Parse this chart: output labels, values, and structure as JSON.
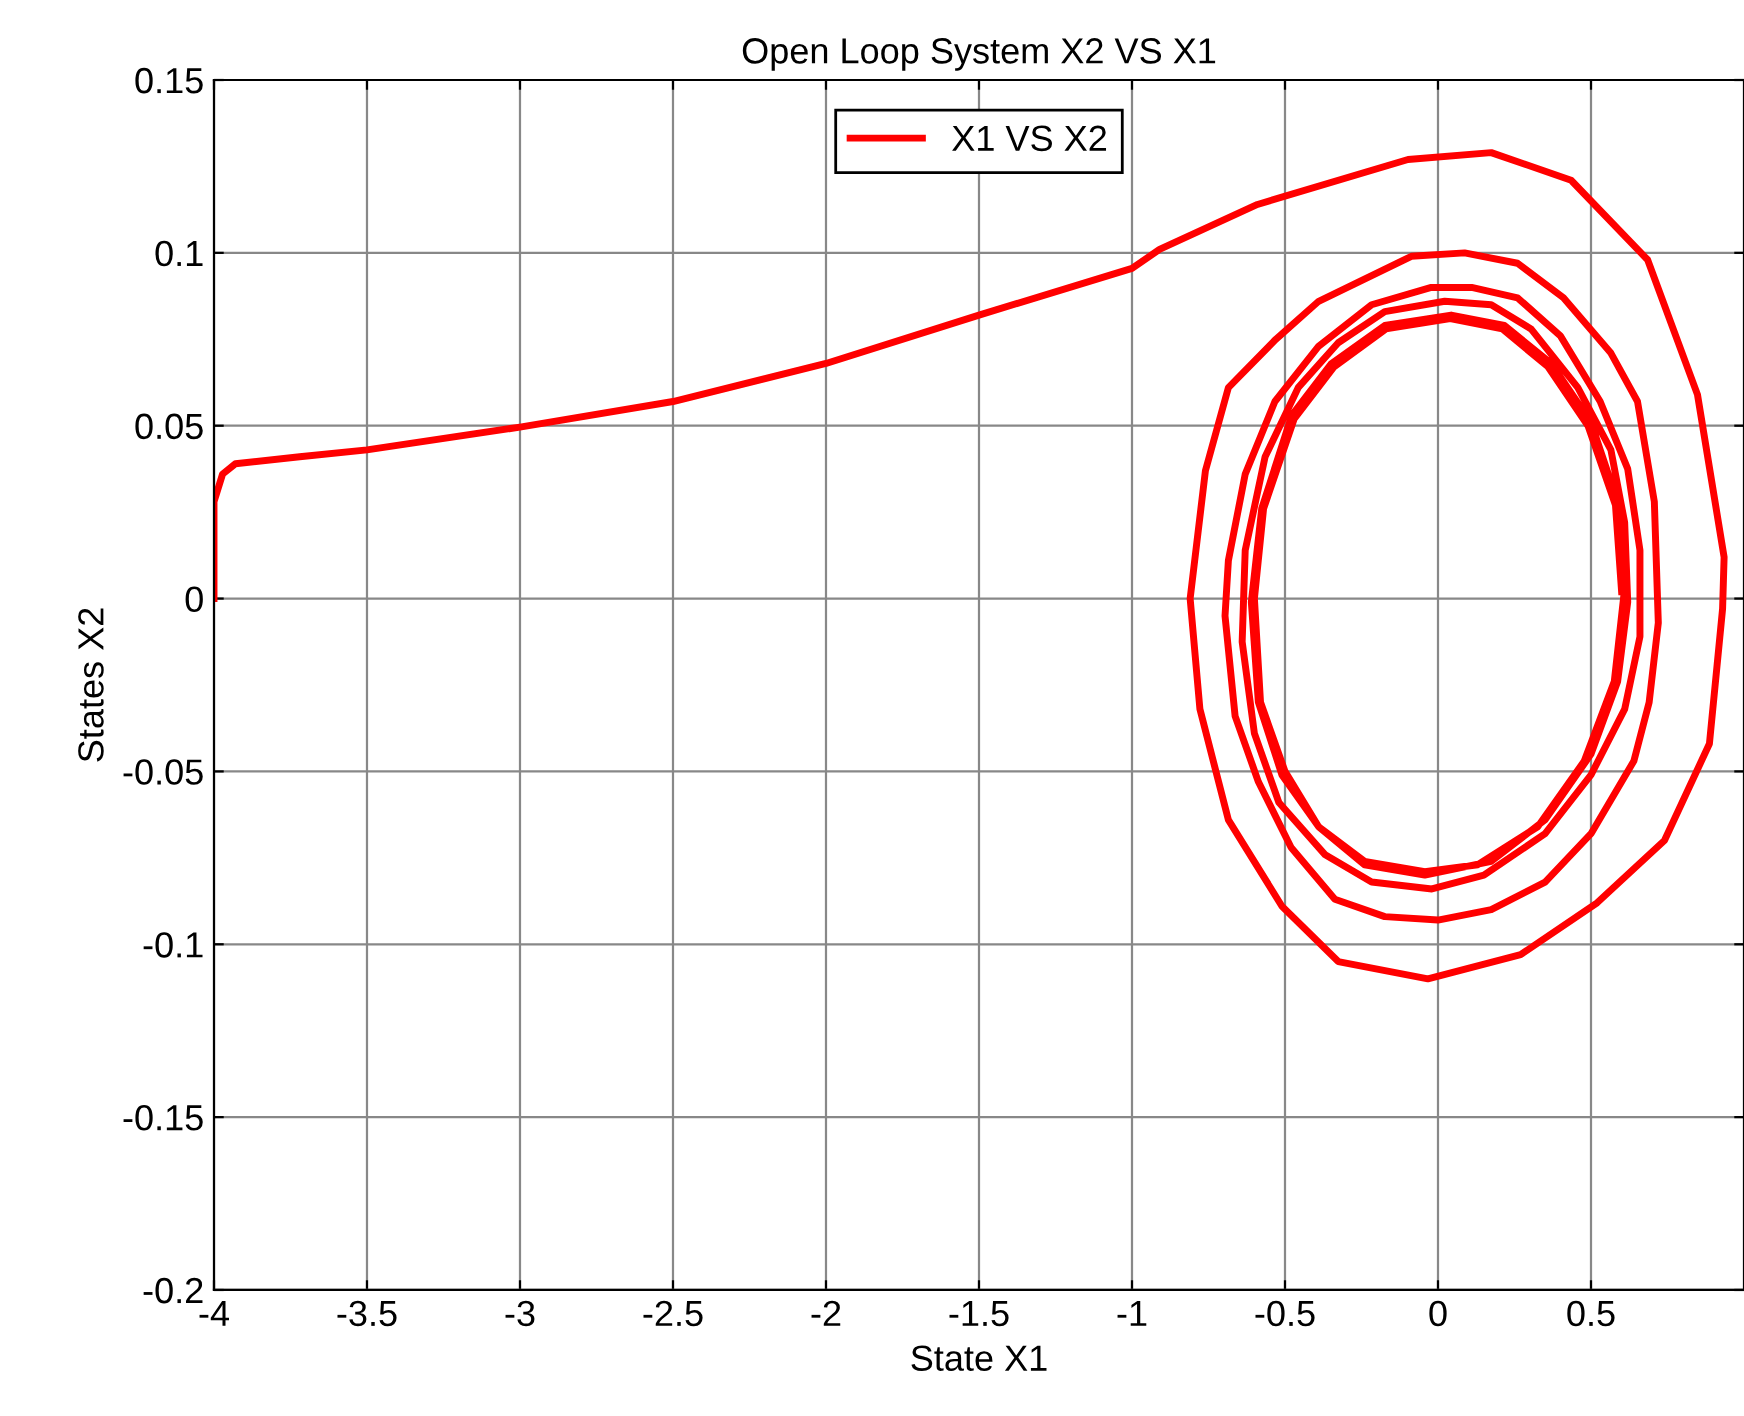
{
  "chart_data": {
    "type": "line",
    "title": "Open Loop System X2 VS X1",
    "xlabel": "State X1",
    "ylabel": "States X2",
    "xlim": [
      -4,
      1
    ],
    "ylim": [
      -0.2,
      0.15
    ],
    "xticks": [
      -4,
      -3.5,
      -3,
      -2.5,
      -2,
      -1.5,
      -1,
      -0.5,
      0,
      0.5
    ],
    "yticks": [
      -0.2,
      -0.15,
      -0.1,
      -0.05,
      0,
      0.05,
      0.1,
      0.15
    ],
    "grid": true,
    "legend": "top",
    "line_style": "solid",
    "marker": "none",
    "series": [
      {
        "name": "X1 VS X2",
        "color": "#ff0000",
        "x": [
          -4,
          -4,
          -3.972,
          -3.93,
          -3.72,
          -3.5,
          -3,
          -2.5,
          -2,
          -1.5,
          -1,
          -0.91,
          -0.59,
          -0.098,
          0.174,
          0.435,
          0.685,
          0.848,
          0.935,
          0.93,
          0.887,
          0.74,
          0.52,
          0.27,
          -0.033,
          -0.326,
          -0.51,
          -0.685,
          -0.778,
          -0.81,
          -0.76,
          -0.685,
          -0.53,
          -0.39,
          -0.087,
          0.087,
          0.26,
          0.41,
          0.565,
          0.652,
          0.707,
          0.72,
          0.69,
          0.64,
          0.5,
          0.35,
          0.174,
          0,
          -0.174,
          -0.337,
          -0.48,
          -0.587,
          -0.663,
          -0.696,
          -0.685,
          -0.63,
          -0.533,
          -0.39,
          -0.217,
          -0.022,
          0.11,
          0.26,
          0.4,
          0.53,
          0.62,
          0.66,
          0.66,
          0.61,
          0.5,
          0.35,
          0.15,
          -0.02,
          -0.217,
          -0.37,
          -0.52,
          -0.6,
          -0.64,
          -0.63,
          -0.565,
          -0.457,
          -0.326,
          -0.174,
          0.022,
          0.174,
          0.304,
          0.457,
          0.565,
          0.61,
          0.62,
          0.587,
          0.5,
          0.35,
          0.174,
          -0.043,
          -0.24,
          -0.39,
          -0.51,
          -0.587,
          -0.61,
          -0.576,
          -0.478,
          -0.348,
          -0.174,
          0.043,
          0.217,
          0.37,
          0.5,
          0.587,
          0.61,
          0.576,
          0.478,
          0.326,
          0.13,
          -0.043,
          -0.24,
          -0.39,
          -0.5,
          -0.58,
          -0.6,
          -0.57,
          -0.47,
          -0.34,
          -0.17,
          0.04,
          0.21,
          0.36,
          0.49,
          0.58,
          0.6
        ],
        "values": [
          0,
          0.028,
          0.036,
          0.039,
          0.041,
          0.043,
          0.0496,
          0.057,
          0.068,
          0.082,
          0.0955,
          0.101,
          0.114,
          0.127,
          0.129,
          0.121,
          0.098,
          0.059,
          0.012,
          -0.003,
          -0.042,
          -0.07,
          -0.088,
          -0.103,
          -0.11,
          -0.105,
          -0.089,
          -0.064,
          -0.032,
          0,
          0.037,
          0.061,
          0.075,
          0.086,
          0.099,
          0.1,
          0.097,
          0.087,
          0.071,
          0.057,
          0.028,
          -0.007,
          -0.03,
          -0.047,
          -0.068,
          -0.082,
          -0.09,
          -0.093,
          -0.092,
          -0.087,
          -0.072,
          -0.053,
          -0.034,
          -0.005,
          0.011,
          0.036,
          0.057,
          0.073,
          0.085,
          0.09,
          0.09,
          0.087,
          0.076,
          0.057,
          0.0375,
          0.014,
          -0.011,
          -0.032,
          -0.051,
          -0.068,
          -0.08,
          -0.084,
          -0.082,
          -0.074,
          -0.059,
          -0.039,
          -0.0125,
          0.014,
          0.041,
          0.061,
          0.074,
          0.083,
          0.086,
          0.085,
          0.078,
          0.061,
          0.043,
          0.022,
          -0.001,
          -0.024,
          -0.045,
          -0.064,
          -0.076,
          -0.08,
          -0.077,
          -0.066,
          -0.051,
          -0.03,
          -0.001,
          0.026,
          0.053,
          0.068,
          0.079,
          0.082,
          0.079,
          0.068,
          0.051,
          0.028,
          0.003,
          -0.024,
          -0.047,
          -0.066,
          -0.077,
          -0.079,
          -0.076,
          -0.066,
          -0.05,
          -0.03,
          0,
          0.026,
          0.052,
          0.067,
          0.078,
          0.081,
          0.078,
          0.067,
          0.05,
          0.027,
          0.002
        ]
      }
    ]
  }
}
